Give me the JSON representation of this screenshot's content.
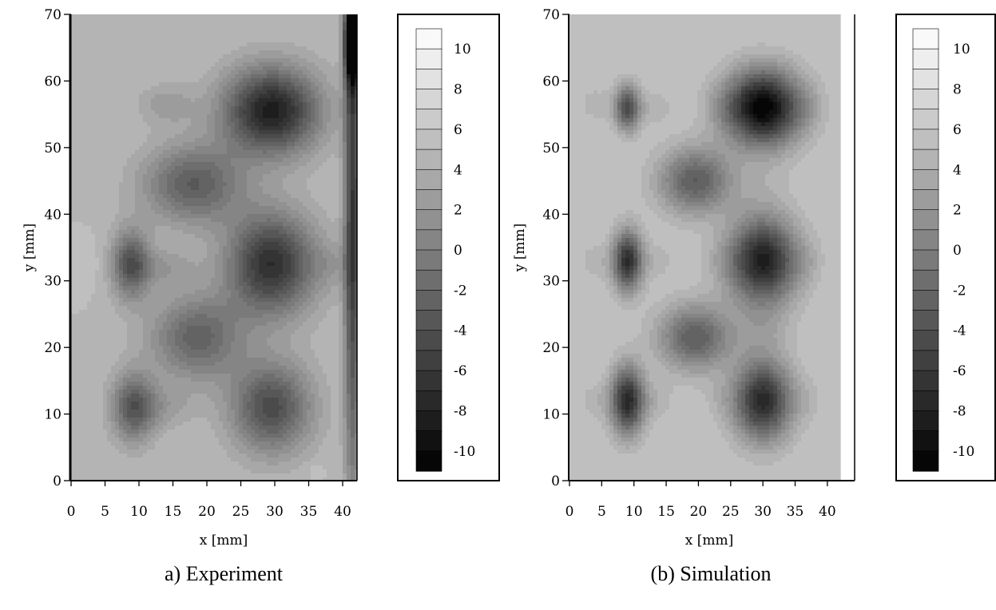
{
  "chart_data": [
    {
      "type": "heatmap",
      "caption": "a) Experiment",
      "xlabel": "x [mm]",
      "ylabel": "y [mm]",
      "xlim": [
        0,
        42
      ],
      "ylim": [
        0,
        70
      ],
      "xticks": [
        "0",
        "5",
        "10",
        "15",
        "20",
        "25",
        "30",
        "35",
        "40"
      ],
      "yticks": [
        "0",
        "10",
        "20",
        "30",
        "40",
        "50",
        "60",
        "70"
      ],
      "background_level": 5,
      "blobs": [
        {
          "x": 29.5,
          "y": 55.5,
          "sx": 5.0,
          "sy": 4.6,
          "value": -8.5
        },
        {
          "x": 29.5,
          "y": 32.5,
          "sx": 4.6,
          "sy": 5.4,
          "value": -7.0
        },
        {
          "x": 29.5,
          "y": 11.0,
          "sx": 4.2,
          "sy": 4.8,
          "value": -4.5
        },
        {
          "x": 18.0,
          "y": 44.5,
          "sx": 5.2,
          "sy": 4.2,
          "value": -3.0
        },
        {
          "x": 18.5,
          "y": 21.5,
          "sx": 4.8,
          "sy": 4.5,
          "value": -2.5
        },
        {
          "x": 8.8,
          "y": 32.5,
          "sx": 2.0,
          "sy": 3.6,
          "value": -4.0
        },
        {
          "x": 9.2,
          "y": 11.0,
          "sx": 2.3,
          "sy": 3.6,
          "value": -3.5
        },
        {
          "x": 2.8,
          "y": 32.5,
          "sx": 2.0,
          "sy": 2.6,
          "value": 5.5
        },
        {
          "x": 3.0,
          "y": 11.5,
          "sx": 2.0,
          "sy": 2.4,
          "value": 5.0
        },
        {
          "x": 14.0,
          "y": 32.0,
          "sx": 3.0,
          "sy": 2.0,
          "value": 2.5
        },
        {
          "x": 14.0,
          "y": 11.0,
          "sx": 3.0,
          "sy": 2.2,
          "value": 3.0
        },
        {
          "x": 38.5,
          "y": 32.5,
          "sx": 2.0,
          "sy": 2.5,
          "value": 3.5
        },
        {
          "x": 14.0,
          "y": 56.5,
          "sx": 3.0,
          "sy": 2.2,
          "value": 2.5
        },
        {
          "x": 41.5,
          "y": 66.0,
          "sx": 0.8,
          "sy": 4.0,
          "value": -16.0
        },
        {
          "x": 41.5,
          "y": 40.0,
          "sx": 0.9,
          "sy": 30.0,
          "value": -6.0
        },
        {
          "x": 36.0,
          "y": 1.3,
          "sx": 0.8,
          "sy": 0.8,
          "value": 6.0
        }
      ],
      "colorbar": {
        "min": -11,
        "max": 11,
        "step": 1,
        "labels": [
          "10",
          "8",
          "6",
          "4",
          "2",
          "0",
          "-2",
          "-4",
          "-6",
          "-8",
          "-10"
        ]
      }
    },
    {
      "type": "heatmap",
      "caption": "(b) Simulation",
      "xlabel": "x [mm]",
      "ylabel": "y [mm]",
      "xlim": [
        0,
        42
      ],
      "ylim": [
        0,
        70
      ],
      "xticks": [
        "0",
        "5",
        "10",
        "15",
        "20",
        "25",
        "30",
        "35",
        "40"
      ],
      "yticks": [
        "0",
        "10",
        "20",
        "30",
        "40",
        "50",
        "60",
        "70"
      ],
      "background_level": 6,
      "blobs": [
        {
          "x": 30.0,
          "y": 56.0,
          "sx": 4.2,
          "sy": 4.0,
          "value": -11.0
        },
        {
          "x": 30.0,
          "y": 33.0,
          "sx": 3.8,
          "sy": 4.5,
          "value": -8.5
        },
        {
          "x": 30.0,
          "y": 12.0,
          "sx": 3.2,
          "sy": 4.2,
          "value": -7.5
        },
        {
          "x": 30.0,
          "y": 44.0,
          "sx": 3.2,
          "sy": 3.2,
          "value": 5.0
        },
        {
          "x": 30.0,
          "y": 22.5,
          "sx": 3.0,
          "sy": 3.0,
          "value": 4.0
        },
        {
          "x": 9.0,
          "y": 56.0,
          "sx": 1.4,
          "sy": 2.4,
          "value": -4.5
        },
        {
          "x": 9.0,
          "y": 33.0,
          "sx": 1.6,
          "sy": 3.2,
          "value": -7.0
        },
        {
          "x": 9.0,
          "y": 12.0,
          "sx": 1.8,
          "sy": 3.6,
          "value": -7.5
        },
        {
          "x": 19.5,
          "y": 45.0,
          "sx": 4.0,
          "sy": 3.5,
          "value": -3.0
        },
        {
          "x": 19.5,
          "y": 21.5,
          "sx": 4.0,
          "sy": 3.5,
          "value": -3.0
        },
        {
          "x": 4.0,
          "y": 56.5,
          "sx": 2.0,
          "sy": 2.0,
          "value": 4.5
        },
        {
          "x": 4.0,
          "y": 33.0,
          "sx": 2.0,
          "sy": 2.0,
          "value": 4.5
        },
        {
          "x": 4.0,
          "y": 12.0,
          "sx": 2.0,
          "sy": 2.0,
          "value": 4.5
        },
        {
          "x": 13.5,
          "y": 56.0,
          "sx": 2.0,
          "sy": 2.0,
          "value": 4.5
        },
        {
          "x": 13.5,
          "y": 33.0,
          "sx": 2.0,
          "sy": 2.0,
          "value": 4.5
        },
        {
          "x": 13.5,
          "y": 12.0,
          "sx": 2.0,
          "sy": 2.0,
          "value": 4.5
        },
        {
          "x": 23.5,
          "y": 56.0,
          "sx": 1.8,
          "sy": 2.0,
          "value": 5.0
        },
        {
          "x": 23.5,
          "y": 33.0,
          "sx": 1.8,
          "sy": 2.0,
          "value": 5.0
        },
        {
          "x": 23.5,
          "y": 12.0,
          "sx": 1.8,
          "sy": 2.0,
          "value": 5.0
        },
        {
          "x": 37.0,
          "y": 56.0,
          "sx": 1.6,
          "sy": 2.2,
          "value": 5.0
        },
        {
          "x": 37.0,
          "y": 33.0,
          "sx": 1.6,
          "sy": 2.2,
          "value": 5.0
        },
        {
          "x": 37.0,
          "y": 12.0,
          "sx": 1.6,
          "sy": 2.2,
          "value": 5.0
        }
      ],
      "colorbar": {
        "min": -11,
        "max": 11,
        "step": 1,
        "labels": [
          "10",
          "8",
          "6",
          "4",
          "2",
          "0",
          "-2",
          "-4",
          "-6",
          "-8",
          "-10"
        ]
      }
    }
  ]
}
